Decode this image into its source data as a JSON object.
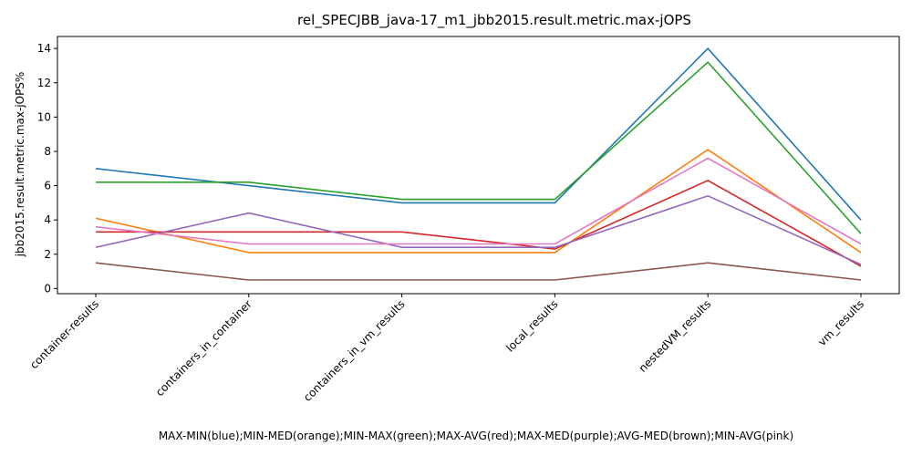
{
  "chart_data": {
    "type": "line",
    "title": "rel_SPECJBB_java-17_m1_jbb2015.result.metric.max-jOPS",
    "xlabel": "MAX-MIN(blue);MIN-MED(orange);MIN-MAX(green);MAX-AVG(red);MAX-MED(purple);AVG-MED(brown);MIN-AVG(pink)",
    "ylabel": "jbb2015.result.metric.max-jOPS%",
    "categories": [
      "container-results",
      "containers_in_container",
      "containers_in_vm_results",
      "local_results",
      "nestedVM_results",
      "vm_results"
    ],
    "ylim": [
      -0.3,
      14.7
    ],
    "yticks": [
      0,
      2,
      4,
      6,
      8,
      10,
      12,
      14
    ],
    "grid": false,
    "series": [
      {
        "color": "#1f77b4",
        "values": [
          7.0,
          6.0,
          5.0,
          5.0,
          14.0,
          4.0
        ]
      },
      {
        "color": "#ff7f0e",
        "values": [
          4.1,
          2.1,
          2.1,
          2.1,
          8.1,
          2.1
        ]
      },
      {
        "color": "#2ca02c",
        "values": [
          6.2,
          6.2,
          5.2,
          5.2,
          13.2,
          3.2
        ]
      },
      {
        "color": "#d62728",
        "values": [
          3.3,
          3.3,
          3.3,
          2.3,
          6.3,
          1.3
        ]
      },
      {
        "color": "#9467bd",
        "values": [
          2.4,
          4.4,
          2.4,
          2.4,
          5.4,
          1.4
        ]
      },
      {
        "color": "#8c564b",
        "values": [
          1.5,
          0.5,
          0.5,
          0.5,
          1.5,
          0.5
        ]
      },
      {
        "color": "#e377c2",
        "values": [
          3.6,
          2.6,
          2.6,
          2.6,
          7.6,
          2.6
        ]
      }
    ]
  }
}
